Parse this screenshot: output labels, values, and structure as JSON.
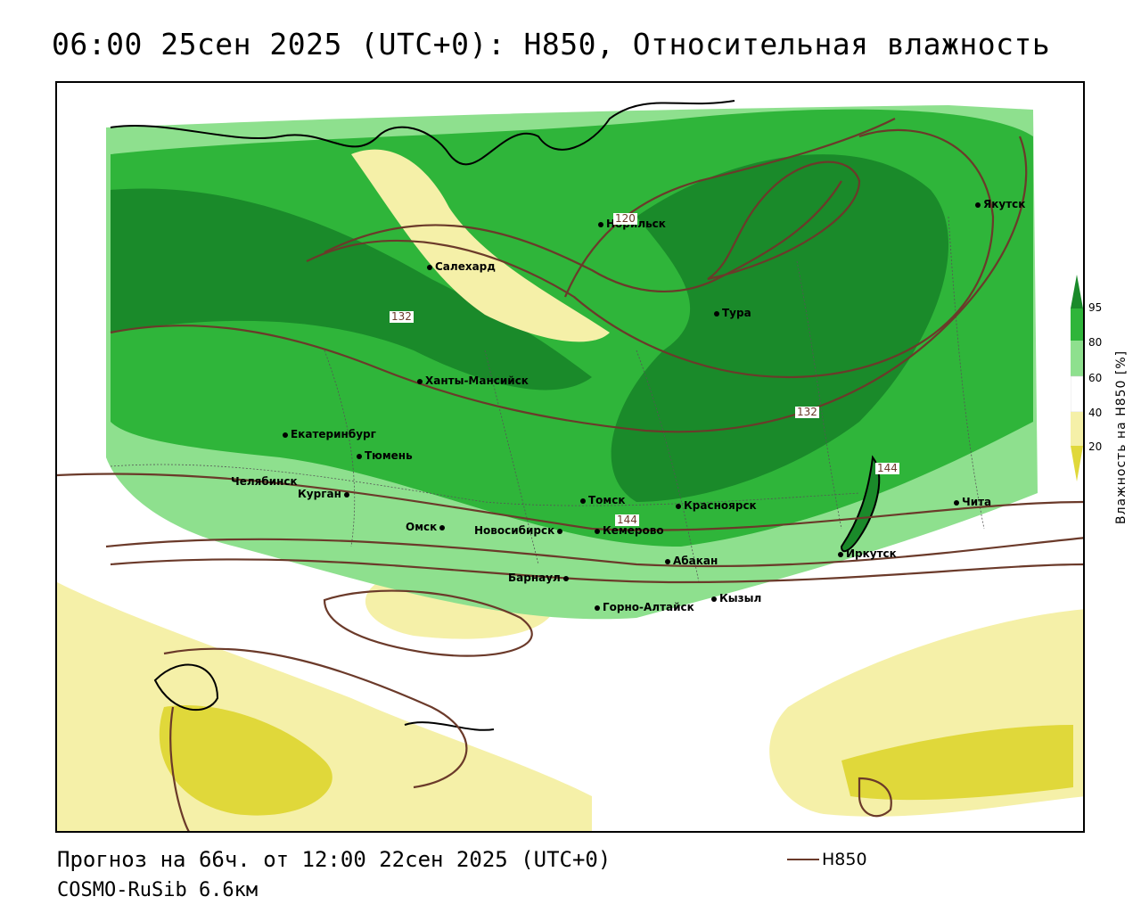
{
  "title": "06:00 25сен 2025 (UTC+0): H850, Относительная влажность",
  "footer": {
    "forecast": "Прогноз на 66ч. от 12:00 22сен 2025 (UTC+0)",
    "model": "COSMO-RuSib 6.6км"
  },
  "legend": {
    "line_label": "H850",
    "line_color": "#6b3a2a"
  },
  "colorbar": {
    "title": "Влажность на H850 [%]",
    "ticks": [
      "95",
      "80",
      "60",
      "40",
      "20"
    ],
    "colors": [
      "#1a8a2a",
      "#2fb53a",
      "#8ee08e",
      "#ffffff",
      "#f5f0a8",
      "#e0d83a"
    ]
  },
  "cities": [
    {
      "name": "Якутск"
    },
    {
      "name": "Норильск"
    },
    {
      "name": "Салехард"
    },
    {
      "name": "Тура"
    },
    {
      "name": "Ханты-Мансийск"
    },
    {
      "name": "Екатеринбург"
    },
    {
      "name": "Тюмень"
    },
    {
      "name": "Челябинск"
    },
    {
      "name": "Курган"
    },
    {
      "name": "Омск"
    },
    {
      "name": "Новосибирск"
    },
    {
      "name": "Томск"
    },
    {
      "name": "Красноярск"
    },
    {
      "name": "Кемерово"
    },
    {
      "name": "Абакан"
    },
    {
      "name": "Барнаул"
    },
    {
      "name": "Горно-Алтайск"
    },
    {
      "name": "Кызыл"
    },
    {
      "name": "Иркутск"
    },
    {
      "name": "Чита"
    }
  ],
  "contour_labels": [
    "120",
    "132",
    "132",
    "144",
    "144"
  ]
}
